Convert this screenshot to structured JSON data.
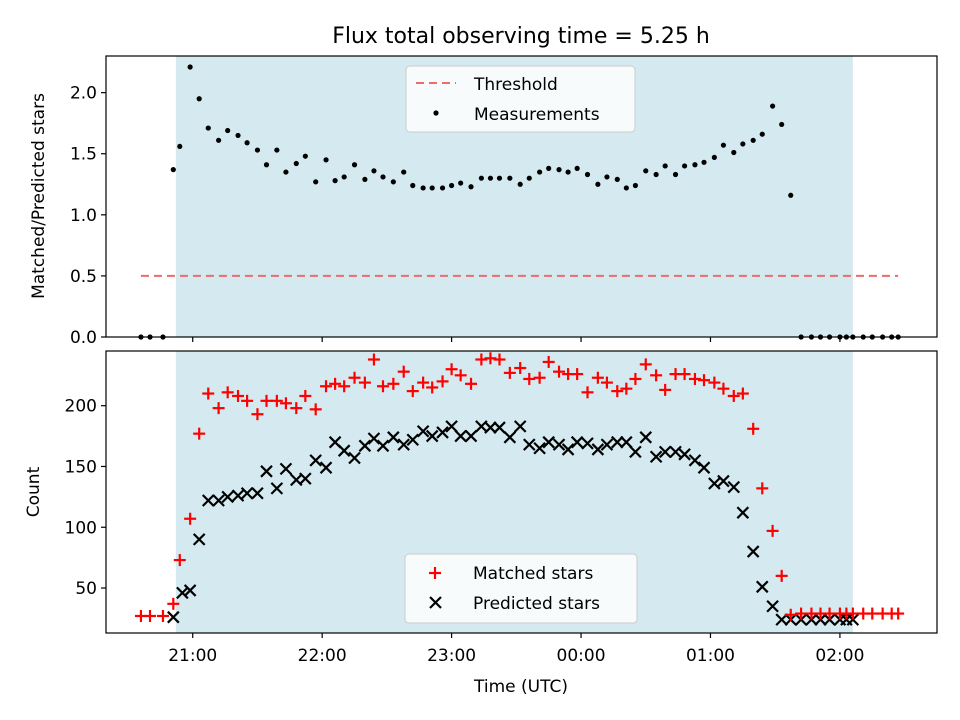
{
  "title": "Flux total observing time = 5.25 h",
  "xlabel": "Time (UTC)",
  "colors": {
    "shade": "#d4eaf0",
    "threshold": "#ee6b6b",
    "measurement": "#000000",
    "matched": "#ff0000",
    "predicted": "#000000"
  },
  "chart_data": [
    {
      "type": "scatter",
      "ylabel": "Matched/Predicted stars",
      "ylim": [
        0,
        2.3
      ],
      "yticks": [
        "0.0",
        "0.5",
        "1.0",
        "1.5",
        "2.0"
      ],
      "xlim": [
        20.33,
        26.75
      ],
      "shaded_range": [
        20.87,
        26.1
      ],
      "legend": {
        "position": "upper center",
        "entries": [
          "Threshold",
          "Measurements"
        ]
      },
      "threshold": {
        "name": "Threshold",
        "x": [
          20.6,
          26.45
        ],
        "y": 0.5
      },
      "series": [
        {
          "name": "Measurements",
          "x": [
            20.6,
            20.67,
            20.77,
            20.85,
            20.9,
            20.98,
            21.05,
            21.12,
            21.2,
            21.27,
            21.35,
            21.42,
            21.5,
            21.57,
            21.65,
            21.72,
            21.8,
            21.87,
            21.95,
            22.03,
            22.1,
            22.17,
            22.25,
            22.33,
            22.4,
            22.47,
            22.55,
            22.63,
            22.7,
            22.78,
            22.85,
            22.93,
            23.0,
            23.07,
            23.15,
            23.23,
            23.3,
            23.37,
            23.45,
            23.53,
            23.6,
            23.68,
            23.75,
            23.83,
            23.9,
            23.97,
            24.05,
            24.13,
            24.2,
            24.28,
            24.35,
            24.42,
            24.5,
            24.58,
            24.65,
            24.73,
            24.8,
            24.88,
            24.95,
            25.03,
            25.1,
            25.18,
            25.25,
            25.33,
            25.4,
            25.48,
            25.55,
            25.62,
            25.7,
            25.78,
            25.85,
            25.92,
            26.0,
            26.05,
            26.1,
            26.18,
            26.25,
            26.33,
            26.4,
            26.45
          ],
          "y": [
            0,
            0,
            0,
            1.37,
            1.56,
            2.21,
            1.95,
            1.71,
            1.61,
            1.69,
            1.65,
            1.59,
            1.53,
            1.41,
            1.53,
            1.35,
            1.42,
            1.48,
            1.27,
            1.45,
            1.28,
            1.31,
            1.41,
            1.29,
            1.36,
            1.31,
            1.27,
            1.35,
            1.24,
            1.22,
            1.22,
            1.22,
            1.24,
            1.26,
            1.23,
            1.3,
            1.3,
            1.3,
            1.3,
            1.25,
            1.3,
            1.35,
            1.38,
            1.37,
            1.35,
            1.38,
            1.33,
            1.25,
            1.31,
            1.29,
            1.22,
            1.24,
            1.36,
            1.33,
            1.4,
            1.33,
            1.4,
            1.41,
            1.43,
            1.47,
            1.57,
            1.51,
            1.58,
            1.61,
            1.66,
            1.89,
            1.74,
            1.16,
            0,
            0,
            0,
            0,
            0,
            0,
            0,
            0,
            0,
            0,
            0,
            0
          ]
        }
      ]
    },
    {
      "type": "scatter",
      "ylabel": "Count",
      "ylim": [
        13,
        245
      ],
      "xlim": [
        20.33,
        26.75
      ],
      "shaded_range": [
        20.87,
        26.1
      ],
      "yticks": [
        "50",
        "100",
        "150",
        "200"
      ],
      "xticks": [
        "21:00",
        "22:00",
        "23:00",
        "00:00",
        "01:00",
        "02:00"
      ],
      "legend": {
        "position": "lower center",
        "entries": [
          "Matched stars",
          "Predicted stars"
        ]
      },
      "series": [
        {
          "name": "Matched stars",
          "marker": "+",
          "x": [
            20.6,
            20.67,
            20.77,
            20.85,
            20.9,
            20.98,
            21.05,
            21.12,
            21.2,
            21.27,
            21.35,
            21.42,
            21.5,
            21.57,
            21.65,
            21.72,
            21.8,
            21.87,
            21.95,
            22.03,
            22.1,
            22.17,
            22.25,
            22.33,
            22.4,
            22.47,
            22.55,
            22.63,
            22.7,
            22.78,
            22.85,
            22.93,
            23.0,
            23.07,
            23.15,
            23.23,
            23.3,
            23.37,
            23.45,
            23.53,
            23.6,
            23.68,
            23.75,
            23.83,
            23.9,
            23.97,
            24.05,
            24.13,
            24.2,
            24.28,
            24.35,
            24.42,
            24.5,
            24.58,
            24.65,
            24.73,
            24.8,
            24.88,
            24.95,
            25.03,
            25.1,
            25.18,
            25.25,
            25.33,
            25.4,
            25.48,
            25.55,
            25.62,
            25.7,
            25.78,
            25.85,
            25.92,
            26.0,
            26.05,
            26.1,
            26.18,
            26.25,
            26.33,
            26.4,
            26.45
          ],
          "y": [
            27,
            27,
            27,
            37,
            73,
            107,
            177,
            210,
            198,
            211,
            208,
            204,
            193,
            204,
            204,
            202,
            198,
            208,
            197,
            216,
            218,
            216,
            223,
            219,
            238,
            216,
            218,
            228,
            212,
            219,
            215,
            220,
            230,
            225,
            218,
            238,
            239,
            238,
            227,
            231,
            222,
            223,
            236,
            228,
            226,
            226,
            211,
            223,
            219,
            212,
            214,
            222,
            234,
            225,
            213,
            226,
            226,
            222,
            221,
            219,
            214,
            208,
            210,
            181,
            132,
            97,
            60,
            28,
            29,
            29,
            29,
            29,
            29,
            29,
            29,
            29,
            29,
            29,
            29,
            29
          ]
        },
        {
          "name": "Predicted stars",
          "marker": "x",
          "x": [
            20.85,
            20.92,
            20.98,
            21.05,
            21.12,
            21.2,
            21.27,
            21.35,
            21.42,
            21.5,
            21.57,
            21.65,
            21.72,
            21.8,
            21.87,
            21.95,
            22.03,
            22.1,
            22.17,
            22.25,
            22.33,
            22.4,
            22.47,
            22.55,
            22.63,
            22.7,
            22.78,
            22.85,
            22.93,
            23.0,
            23.07,
            23.15,
            23.23,
            23.3,
            23.37,
            23.45,
            23.53,
            23.6,
            23.68,
            23.75,
            23.83,
            23.9,
            23.97,
            24.05,
            24.13,
            24.2,
            24.28,
            24.35,
            24.42,
            24.5,
            24.58,
            24.65,
            24.73,
            24.8,
            24.88,
            24.95,
            25.03,
            25.1,
            25.18,
            25.25,
            25.33,
            25.4,
            25.48,
            25.55,
            25.62,
            25.7,
            25.78,
            25.85,
            25.92,
            26.0,
            26.05,
            26.1
          ],
          "y": [
            26,
            46,
            48,
            90,
            122,
            122,
            125,
            126,
            128,
            128,
            146,
            132,
            148,
            139,
            140,
            155,
            149,
            170,
            163,
            157,
            167,
            173,
            167,
            174,
            168,
            172,
            179,
            175,
            178,
            183,
            175,
            175,
            183,
            182,
            182,
            174,
            183,
            168,
            165,
            170,
            168,
            164,
            170,
            169,
            164,
            168,
            170,
            170,
            162,
            174,
            158,
            162,
            162,
            160,
            155,
            149,
            136,
            138,
            133,
            112,
            80,
            51,
            35,
            24,
            24,
            24,
            24,
            24,
            24,
            24,
            24,
            24
          ]
        }
      ]
    }
  ]
}
